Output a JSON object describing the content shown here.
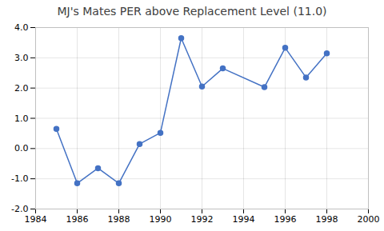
{
  "chart_data": {
    "type": "line",
    "title": "MJ's Mates PER above Replacement Level (11.0)",
    "x": [
      1985,
      1986,
      1987,
      1988,
      1989,
      1990,
      1991,
      1992,
      1993,
      1995,
      1996,
      1997,
      1998
    ],
    "values": [
      0.65,
      -1.15,
      -0.65,
      -1.15,
      0.15,
      0.52,
      3.65,
      2.05,
      2.65,
      2.03,
      3.33,
      2.35,
      3.15
    ],
    "color": "#4472C4",
    "marker": "circle",
    "xlim": [
      1984,
      2000
    ],
    "xticks": [
      1984,
      1986,
      1988,
      1990,
      1992,
      1994,
      1996,
      1998,
      2000
    ],
    "ylim": [
      -2.0,
      4.0
    ],
    "yticks": [
      {
        "value": -2.0,
        "label": "-2.0"
      },
      {
        "value": -1.0,
        "label": "-1.0"
      },
      {
        "value": 0.0,
        "label": "0.0"
      },
      {
        "value": 1.0,
        "label": "1.0"
      },
      {
        "value": 2.0,
        "label": "2.0"
      },
      {
        "value": 3.0,
        "label": "3.0"
      },
      {
        "value": 4.0,
        "label": "4.0"
      }
    ],
    "grid": true
  }
}
